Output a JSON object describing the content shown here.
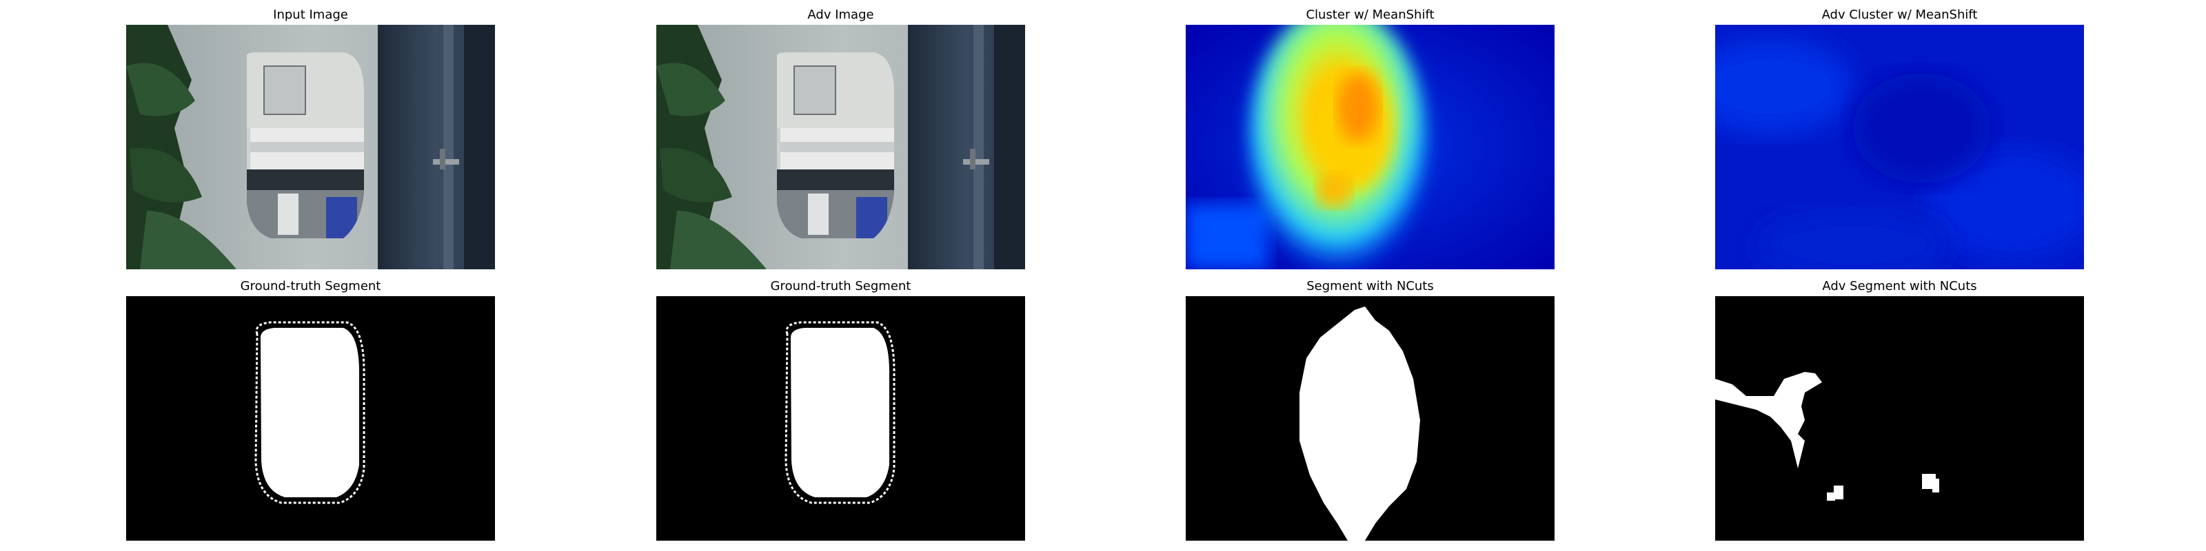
{
  "figure": {
    "panels": [
      {
        "id": "input-image",
        "title": "Input Image"
      },
      {
        "id": "adv-image",
        "title": "Adv Image"
      },
      {
        "id": "cluster-meanshift",
        "title": "Cluster w/ MeanShift"
      },
      {
        "id": "adv-cluster-meanshift",
        "title": "Adv Cluster w/ MeanShift"
      },
      {
        "id": "gt-segment-1",
        "title": "Ground-truth Segment"
      },
      {
        "id": "gt-segment-2",
        "title": "Ground-truth Segment"
      },
      {
        "id": "segment-ncuts",
        "title": "Segment with NCuts"
      },
      {
        "id": "adv-segment-ncuts",
        "title": "Adv Segment with NCuts"
      }
    ],
    "colors": {
      "background": "#ffffff",
      "segment_fg": "#ffffff",
      "segment_bg": "#000000",
      "heatmap_low": "#0000a0",
      "heatmap_high": "#ff8c00"
    }
  }
}
